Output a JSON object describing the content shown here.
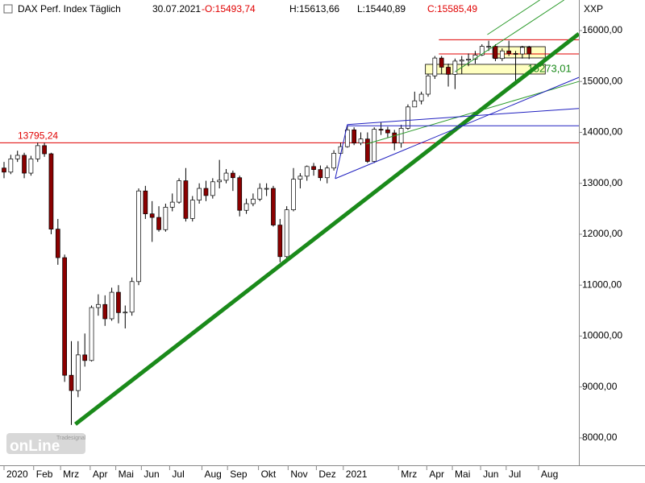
{
  "chart_data": {
    "type": "candlestick",
    "title": "DAX Perf. Index Täglich",
    "date": "30.07.2021",
    "ohlc_labels": {
      "open": "-O:15493,74",
      "high": "H:15613,66",
      "low": "L:15440,89",
      "close": "C:15585,49"
    },
    "symbol": "XXP",
    "logo": {
      "small": "Tradesignal",
      "main": "onLine"
    },
    "up_color": "#ffffff",
    "down_color": "#8b0000",
    "outline_color": "#000000",
    "xlim": [
      0,
      430
    ],
    "ylim": [
      7462,
      16600
    ],
    "yticks": [
      {
        "value": 8000,
        "label": "8000,00"
      },
      {
        "value": 9000,
        "label": "9000,00"
      },
      {
        "value": 10000,
        "label": "10000,00"
      },
      {
        "value": 11000,
        "label": "11000,00"
      },
      {
        "value": 12000,
        "label": "12000,00"
      },
      {
        "value": 13000,
        "label": "13000,00"
      },
      {
        "value": 14000,
        "label": "14000,00"
      },
      {
        "value": 15000,
        "label": "15000,00"
      },
      {
        "value": 16000,
        "label": "16000,00"
      }
    ],
    "xticks": [
      {
        "value": 3,
        "label": "2020"
      },
      {
        "value": 25,
        "label": "Feb"
      },
      {
        "value": 45,
        "label": "Mrz"
      },
      {
        "value": 67,
        "label": "Apr"
      },
      {
        "value": 86,
        "label": "Mai"
      },
      {
        "value": 105,
        "label": "Jun"
      },
      {
        "value": 126,
        "label": "Jul"
      },
      {
        "value": 150,
        "label": "Aug"
      },
      {
        "value": 169,
        "label": "Sep"
      },
      {
        "value": 192,
        "label": "Okt"
      },
      {
        "value": 214,
        "label": "Nov"
      },
      {
        "value": 235,
        "label": "Dez"
      },
      {
        "value": 255,
        "label": "2021"
      },
      {
        "value": 296,
        "label": "Mrz"
      },
      {
        "value": 317,
        "label": "Apr"
      },
      {
        "value": 336,
        "label": "Mai"
      },
      {
        "value": 357,
        "label": "Jun"
      },
      {
        "value": 376,
        "label": "Jul"
      },
      {
        "value": 400,
        "label": "Aug"
      }
    ],
    "x": [
      3,
      8,
      13,
      18,
      23,
      28,
      33,
      38,
      43,
      48,
      53,
      58,
      63,
      68,
      73,
      78,
      83,
      88,
      93,
      98,
      103,
      108,
      113,
      118,
      123,
      128,
      133,
      138,
      143,
      148,
      153,
      158,
      163,
      168,
      173,
      178,
      183,
      188,
      193,
      198,
      203,
      208,
      213,
      218,
      223,
      228,
      233,
      238,
      243,
      248,
      253,
      258,
      263,
      268,
      273,
      278,
      283,
      288,
      293,
      298,
      303,
      308,
      313,
      318,
      323,
      328,
      333,
      338,
      343,
      348,
      353,
      358,
      363,
      368,
      373,
      378,
      383,
      388,
      393
    ],
    "open": [
      13300,
      13220,
      13480,
      13550,
      13200,
      13480,
      13740,
      13580,
      12100,
      11540,
      9230,
      8930,
      9630,
      9520,
      10560,
      10620,
      10340,
      10860,
      10460,
      10470,
      11070,
      12850,
      12400,
      12330,
      12090,
      12530,
      12630,
      13050,
      12310,
      12670,
      12900,
      12760,
      13030,
      13060,
      13200,
      13110,
      12470,
      12600,
      12690,
      12900,
      12900,
      12180,
      11560,
      12480,
      13080,
      13140,
      13330,
      13270,
      13110,
      13300,
      13590,
      13720,
      14050,
      13790,
      13870,
      13430,
      14060,
      14050,
      13990,
      13790,
      14080,
      14500,
      14620,
      14750,
      15110,
      15460,
      15280,
      15140,
      15400,
      15420,
      15440,
      15520,
      15690,
      15690,
      15450,
      15600,
      15550,
      15540,
      15670
    ],
    "high": [
      13420,
      13560,
      13640,
      13600,
      13540,
      13800,
      13795,
      13600,
      12300,
      11600,
      9900,
      9900,
      10050,
      10600,
      10820,
      10800,
      10950,
      11000,
      10600,
      11150,
      12900,
      12950,
      12650,
      12550,
      12600,
      12800,
      13100,
      13300,
      12750,
      13000,
      13050,
      13100,
      13460,
      13280,
      13250,
      13150,
      12700,
      12800,
      13000,
      13000,
      12950,
      12300,
      12550,
      13300,
      13200,
      13350,
      13400,
      13350,
      13350,
      13650,
      13800,
      14130,
      14100,
      14000,
      14000,
      14100,
      14200,
      14110,
      14050,
      14150,
      14550,
      14800,
      14800,
      15150,
      15500,
      15500,
      15350,
      15450,
      15500,
      15550,
      15600,
      15730,
      15800,
      15730,
      15650,
      15800,
      15600,
      15700,
      15700
    ],
    "low": [
      13100,
      13180,
      13420,
      13100,
      13150,
      13420,
      13520,
      12000,
      11400,
      9100,
      8255,
      8800,
      9400,
      9500,
      10400,
      10200,
      10300,
      10250,
      10150,
      10400,
      11000,
      12300,
      11850,
      12050,
      12050,
      12450,
      12600,
      12250,
      12250,
      12600,
      12650,
      12700,
      12900,
      13000,
      12850,
      12350,
      12400,
      12550,
      12650,
      12750,
      12150,
      11450,
      11500,
      12450,
      12900,
      13050,
      13150,
      13050,
      13000,
      13250,
      13550,
      13700,
      13750,
      13750,
      13400,
      13400,
      13950,
      13900,
      13650,
      13700,
      14050,
      14500,
      14550,
      14700,
      15050,
      15150,
      14900,
      14850,
      15150,
      15300,
      15350,
      15500,
      15600,
      15400,
      15400,
      15500,
      15000,
      15450,
      15440
    ],
    "close": [
      13220,
      13480,
      13550,
      13200,
      13480,
      13740,
      13580,
      12100,
      11540,
      9230,
      8930,
      9630,
      9520,
      10560,
      10620,
      10340,
      10860,
      10460,
      10470,
      11070,
      12850,
      12400,
      12330,
      12090,
      12530,
      12630,
      13050,
      12310,
      12670,
      12900,
      12760,
      13030,
      13060,
      13200,
      13110,
      12470,
      12600,
      12690,
      12900,
      12900,
      12180,
      11560,
      12480,
      13080,
      13140,
      13330,
      13270,
      13110,
      13300,
      13590,
      13720,
      14050,
      13790,
      13870,
      13430,
      14060,
      14050,
      13990,
      13790,
      14080,
      14500,
      14620,
      14750,
      15110,
      15460,
      15280,
      15140,
      15400,
      15420,
      15440,
      15520,
      15690,
      15690,
      15450,
      15600,
      15550,
      15540,
      15670,
      15540
    ],
    "hlines": [
      {
        "value": 13795.24,
        "label": "13795,24",
        "color": "#e00000",
        "x": [
          0,
          430
        ]
      },
      {
        "value": 15820,
        "color": "#e00000",
        "x": [
          326,
          430
        ]
      },
      {
        "value": 15540,
        "color": "#e00000",
        "x": [
          326,
          430
        ]
      }
    ],
    "boxes": [
      {
        "x": [
          316,
          405
        ],
        "y": [
          15146,
          15336
        ],
        "color": "#ffffc0"
      },
      {
        "x": [
          366,
          405
        ],
        "y": [
          15462,
          15683
        ],
        "color": "#ffffc0"
      }
    ],
    "trendlines": [
      {
        "color": "#1a8a1a",
        "width": 5,
        "x": [
          56,
          430
        ],
        "y": [
          8269,
          15937
        ]
      },
      {
        "color": "#2a9a2a",
        "width": 1,
        "x": [
          272,
          430
        ],
        "y": [
          13770,
          15000
        ]
      },
      {
        "color": "#2a9a2a",
        "width": 1,
        "x": [
          338,
          419
        ],
        "y": [
          15190,
          16600
        ]
      },
      {
        "color": "#2a9a2a",
        "width": 1,
        "x": [
          362,
          401
        ],
        "y": [
          15920,
          16600
        ]
      },
      {
        "color": "#2020c0",
        "width": 1,
        "x": [
          249,
          430
        ],
        "y": [
          13092,
          15080
        ]
      },
      {
        "color": "#2020c0",
        "width": 1,
        "x": [
          258,
          430
        ],
        "y": [
          14154,
          14470
        ]
      },
      {
        "color": "#2020c0",
        "width": 1,
        "x": [
          258,
          430
        ],
        "y": [
          14130,
          14130
        ]
      },
      {
        "color": "#2020c0",
        "width": 1,
        "x": [
          249,
          258
        ],
        "y": [
          13092,
          14154
        ]
      }
    ],
    "annotations": [
      {
        "x": 392,
        "y": 15273.01,
        "label": "15273,01",
        "color": "#1a8a1a"
      }
    ]
  }
}
